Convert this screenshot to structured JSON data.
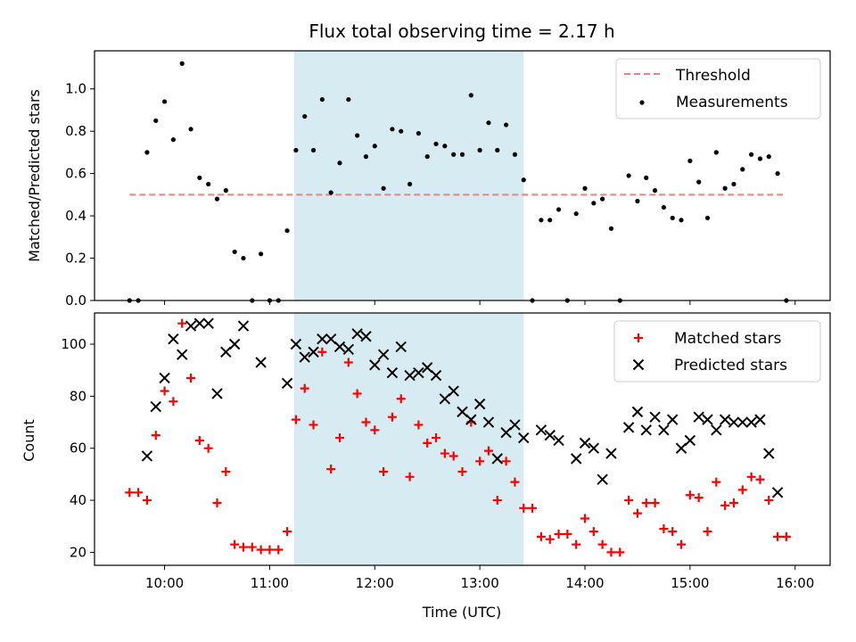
{
  "title": "Flux total observing time = 2.17 h",
  "colors": {
    "threshold": "#f07f7f",
    "highlight": "#add8e6",
    "measurement": "#000000",
    "matched": "#ff0000",
    "predicted": "#000000"
  },
  "chart_data": [
    {
      "type": "scatter",
      "ylabel": "Matched/Predicted stars",
      "ylim": [
        0,
        1.18
      ],
      "yticks": [
        "0.0",
        "0.2",
        "0.4",
        "0.6",
        "0.8",
        "1.0"
      ],
      "legend": {
        "placement": "top-right",
        "entries": [
          "Threshold",
          "Measurements"
        ]
      },
      "threshold": {
        "name": "Threshold",
        "value": 0.5,
        "x_start": "09:40",
        "x_end": "15:53"
      },
      "highlight_span": {
        "start": "11:14",
        "end": "13:25"
      },
      "measurements": [
        [
          "09:40",
          0.0
        ],
        [
          "09:45",
          0.0
        ],
        [
          "09:50",
          0.7
        ],
        [
          "09:55",
          0.85
        ],
        [
          "10:00",
          0.94
        ],
        [
          "10:05",
          0.76
        ],
        [
          "10:10",
          1.12
        ],
        [
          "10:15",
          0.81
        ],
        [
          "10:20",
          0.58
        ],
        [
          "10:25",
          0.55
        ],
        [
          "10:30",
          0.48
        ],
        [
          "10:35",
          0.52
        ],
        [
          "10:40",
          0.23
        ],
        [
          "10:45",
          0.2
        ],
        [
          "10:50",
          0.0
        ],
        [
          "10:55",
          0.22
        ],
        [
          "11:00",
          0.0
        ],
        [
          "11:05",
          0.0
        ],
        [
          "11:10",
          0.33
        ],
        [
          "11:15",
          0.71
        ],
        [
          "11:20",
          0.87
        ],
        [
          "11:25",
          0.71
        ],
        [
          "11:30",
          0.95
        ],
        [
          "11:35",
          0.51
        ],
        [
          "11:40",
          0.65
        ],
        [
          "11:45",
          0.95
        ],
        [
          "11:50",
          0.78
        ],
        [
          "11:55",
          0.68
        ],
        [
          "12:00",
          0.73
        ],
        [
          "12:05",
          0.53
        ],
        [
          "12:10",
          0.81
        ],
        [
          "12:15",
          0.8
        ],
        [
          "12:20",
          0.55
        ],
        [
          "12:25",
          0.79
        ],
        [
          "12:30",
          0.68
        ],
        [
          "12:35",
          0.74
        ],
        [
          "12:40",
          0.73
        ],
        [
          "12:45",
          0.69
        ],
        [
          "12:50",
          0.69
        ],
        [
          "12:55",
          0.97
        ],
        [
          "13:00",
          0.71
        ],
        [
          "13:05",
          0.84
        ],
        [
          "13:10",
          0.71
        ],
        [
          "13:15",
          0.83
        ],
        [
          "13:20",
          0.69
        ],
        [
          "13:25",
          0.57
        ],
        [
          "13:30",
          0.0
        ],
        [
          "13:35",
          0.38
        ],
        [
          "13:40",
          0.38
        ],
        [
          "13:45",
          0.43
        ],
        [
          "13:50",
          0.0
        ],
        [
          "13:55",
          0.41
        ],
        [
          "14:00",
          0.53
        ],
        [
          "14:05",
          0.46
        ],
        [
          "14:10",
          0.48
        ],
        [
          "14:15",
          0.34
        ],
        [
          "14:20",
          0.0
        ],
        [
          "14:25",
          0.59
        ],
        [
          "14:30",
          0.47
        ],
        [
          "14:35",
          0.58
        ],
        [
          "14:40",
          0.52
        ],
        [
          "14:45",
          0.44
        ],
        [
          "14:50",
          0.39
        ],
        [
          "14:55",
          0.38
        ],
        [
          "15:00",
          0.66
        ],
        [
          "15:05",
          0.56
        ],
        [
          "15:10",
          0.39
        ],
        [
          "15:15",
          0.7
        ],
        [
          "15:20",
          0.53
        ],
        [
          "15:25",
          0.55
        ],
        [
          "15:30",
          0.62
        ],
        [
          "15:35",
          0.69
        ],
        [
          "15:40",
          0.67
        ],
        [
          "15:45",
          0.68
        ],
        [
          "15:50",
          0.6
        ],
        [
          "15:55",
          0.0
        ]
      ]
    },
    {
      "type": "scatter",
      "xlabel": "Time (UTC)",
      "ylabel": "Count",
      "ylim": [
        15,
        112
      ],
      "yticks": [
        "20",
        "40",
        "60",
        "80",
        "100"
      ],
      "xticks": [
        "10:00",
        "11:00",
        "12:00",
        "13:00",
        "14:00",
        "15:00",
        "16:00"
      ],
      "legend": {
        "placement": "top-right",
        "entries": [
          "Matched stars",
          "Predicted stars"
        ]
      },
      "highlight_span": {
        "start": "11:14",
        "end": "13:25"
      },
      "series": [
        {
          "name": "Matched stars",
          "marker": "plus",
          "points": [
            [
              "09:40",
              43
            ],
            [
              "09:45",
              43
            ],
            [
              "09:50",
              40
            ],
            [
              "09:55",
              65
            ],
            [
              "10:00",
              82
            ],
            [
              "10:05",
              78
            ],
            [
              "10:10",
              108
            ],
            [
              "10:15",
              87
            ],
            [
              "10:20",
              63
            ],
            [
              "10:25",
              60
            ],
            [
              "10:30",
              39
            ],
            [
              "10:35",
              51
            ],
            [
              "10:40",
              23
            ],
            [
              "10:45",
              22
            ],
            [
              "10:50",
              22
            ],
            [
              "10:55",
              21
            ],
            [
              "11:00",
              21
            ],
            [
              "11:05",
              21
            ],
            [
              "11:10",
              28
            ],
            [
              "11:15",
              71
            ],
            [
              "11:20",
              83
            ],
            [
              "11:25",
              69
            ],
            [
              "11:30",
              97
            ],
            [
              "11:35",
              52
            ],
            [
              "11:40",
              64
            ],
            [
              "11:45",
              93
            ],
            [
              "11:50",
              81
            ],
            [
              "11:55",
              70
            ],
            [
              "12:00",
              67
            ],
            [
              "12:05",
              51
            ],
            [
              "12:10",
              72
            ],
            [
              "12:15",
              79
            ],
            [
              "12:20",
              49
            ],
            [
              "12:25",
              69
            ],
            [
              "12:30",
              62
            ],
            [
              "12:35",
              64
            ],
            [
              "12:40",
              58
            ],
            [
              "12:45",
              57
            ],
            [
              "12:50",
              51
            ],
            [
              "12:55",
              70
            ],
            [
              "13:00",
              55
            ],
            [
              "13:05",
              59
            ],
            [
              "13:10",
              40
            ],
            [
              "13:15",
              55
            ],
            [
              "13:20",
              47
            ],
            [
              "13:25",
              37
            ],
            [
              "13:30",
              37
            ],
            [
              "13:35",
              26
            ],
            [
              "13:40",
              25
            ],
            [
              "13:45",
              27
            ],
            [
              "13:50",
              27
            ],
            [
              "13:55",
              23
            ],
            [
              "14:00",
              33
            ],
            [
              "14:05",
              28
            ],
            [
              "14:10",
              23
            ],
            [
              "14:15",
              20
            ],
            [
              "14:20",
              20
            ],
            [
              "14:25",
              40
            ],
            [
              "14:30",
              35
            ],
            [
              "14:35",
              39
            ],
            [
              "14:40",
              39
            ],
            [
              "14:45",
              29
            ],
            [
              "14:50",
              28
            ],
            [
              "14:55",
              23
            ],
            [
              "15:00",
              42
            ],
            [
              "15:05",
              41
            ],
            [
              "15:10",
              28
            ],
            [
              "15:15",
              47
            ],
            [
              "15:20",
              38
            ],
            [
              "15:25",
              39
            ],
            [
              "15:30",
              44
            ],
            [
              "15:35",
              49
            ],
            [
              "15:40",
              48
            ],
            [
              "15:45",
              40
            ],
            [
              "15:50",
              26
            ],
            [
              "15:55",
              26
            ]
          ]
        },
        {
          "name": "Predicted stars",
          "marker": "x",
          "points": [
            [
              "09:50",
              57
            ],
            [
              "09:55",
              76
            ],
            [
              "10:00",
              87
            ],
            [
              "10:05",
              102
            ],
            [
              "10:10",
              96
            ],
            [
              "10:15",
              107
            ],
            [
              "10:20",
              108
            ],
            [
              "10:25",
              108
            ],
            [
              "10:30",
              81
            ],
            [
              "10:35",
              97
            ],
            [
              "10:40",
              100
            ],
            [
              "10:45",
              107
            ],
            [
              "10:55",
              93
            ],
            [
              "11:10",
              85
            ],
            [
              "11:15",
              100
            ],
            [
              "11:20",
              95
            ],
            [
              "11:25",
              97
            ],
            [
              "11:30",
              102
            ],
            [
              "11:35",
              102
            ],
            [
              "11:40",
              99
            ],
            [
              "11:45",
              98
            ],
            [
              "11:50",
              104
            ],
            [
              "11:55",
              103
            ],
            [
              "12:00",
              92
            ],
            [
              "12:05",
              96
            ],
            [
              "12:10",
              89
            ],
            [
              "12:15",
              99
            ],
            [
              "12:20",
              88
            ],
            [
              "12:25",
              89
            ],
            [
              "12:30",
              91
            ],
            [
              "12:35",
              88
            ],
            [
              "12:40",
              79
            ],
            [
              "12:45",
              82
            ],
            [
              "12:50",
              74
            ],
            [
              "12:55",
              71
            ],
            [
              "13:00",
              77
            ],
            [
              "13:05",
              70
            ],
            [
              "13:10",
              56
            ],
            [
              "13:15",
              66
            ],
            [
              "13:20",
              69
            ],
            [
              "13:25",
              64
            ],
            [
              "13:35",
              67
            ],
            [
              "13:40",
              65
            ],
            [
              "13:45",
              63
            ],
            [
              "13:55",
              56
            ],
            [
              "14:00",
              62
            ],
            [
              "14:05",
              60
            ],
            [
              "14:10",
              48
            ],
            [
              "14:15",
              58
            ],
            [
              "14:25",
              68
            ],
            [
              "14:30",
              74
            ],
            [
              "14:35",
              67
            ],
            [
              "14:40",
              72
            ],
            [
              "14:45",
              67
            ],
            [
              "14:50",
              71
            ],
            [
              "14:55",
              60
            ],
            [
              "15:00",
              63
            ],
            [
              "15:05",
              72
            ],
            [
              "15:10",
              71
            ],
            [
              "15:15",
              67
            ],
            [
              "15:20",
              71
            ],
            [
              "15:25",
              70
            ],
            [
              "15:30",
              70
            ],
            [
              "15:35",
              70
            ],
            [
              "15:40",
              71
            ],
            [
              "15:45",
              58
            ],
            [
              "15:50",
              43
            ]
          ]
        }
      ]
    }
  ]
}
